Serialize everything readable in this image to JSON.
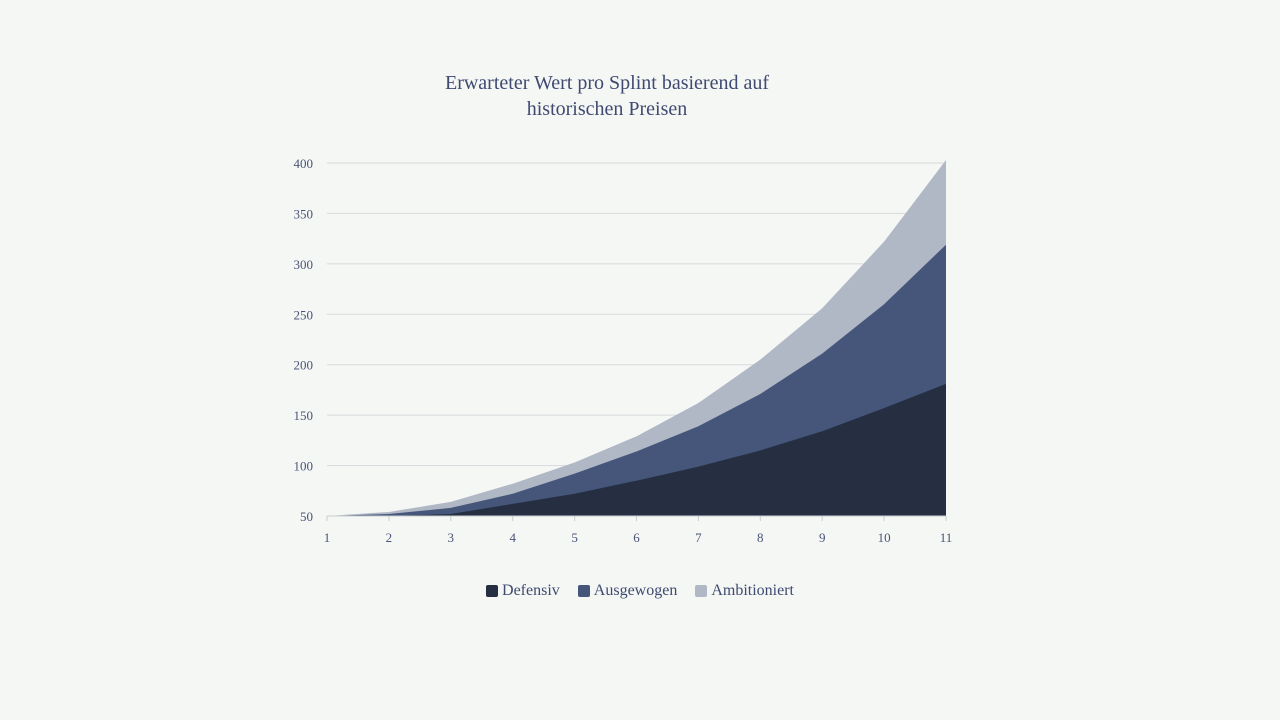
{
  "chart_data": {
    "type": "area",
    "stacked": true,
    "title": [
      "Erwarteter Wert pro Splint basierend auf",
      "historischen Preisen"
    ],
    "xlabel": "",
    "ylabel": "",
    "x": [
      1,
      2,
      3,
      4,
      5,
      6,
      7,
      8,
      9,
      10,
      11
    ],
    "xtick_labels": [
      "1",
      "2",
      "3",
      "4",
      "5",
      "6",
      "7",
      "8",
      "9",
      "10",
      "11"
    ],
    "ylim": [
      50,
      400
    ],
    "yticks": [
      50,
      100,
      150,
      200,
      250,
      300,
      350,
      400
    ],
    "grid": true,
    "legend_position": "bottom",
    "series": [
      {
        "name": "Defensiv",
        "color": "#262f41",
        "values": [
          50,
          50,
          52,
          62,
          72,
          85,
          99,
          115,
          134,
          157,
          181
        ]
      },
      {
        "name": "Ausgewogen",
        "color": "#45567a",
        "values": [
          50,
          52,
          58,
          72,
          92,
          114,
          139,
          171,
          211,
          260,
          319
        ]
      },
      {
        "name": "Ambitioniert",
        "color": "#b0b7c5",
        "values": [
          50,
          54,
          64,
          82,
          103,
          129,
          162,
          205,
          256,
          322,
          403
        ]
      }
    ]
  }
}
